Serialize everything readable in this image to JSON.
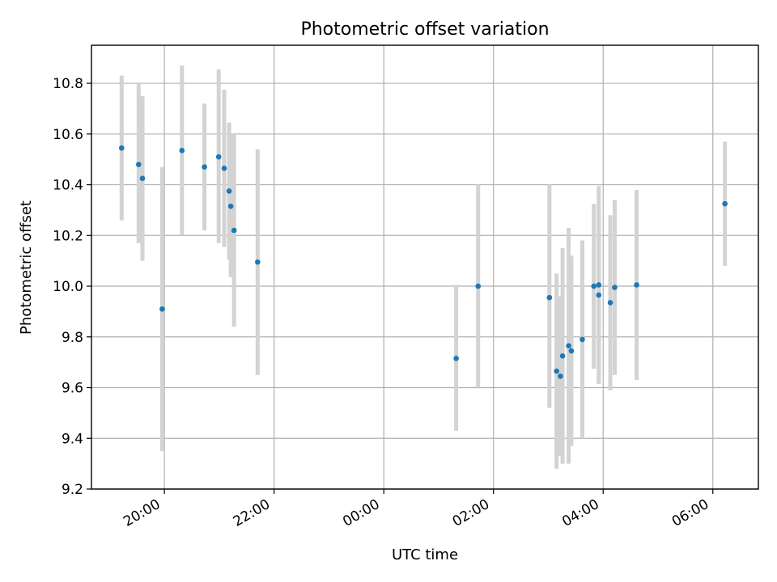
{
  "chart_data": {
    "type": "scatter",
    "title": "Photometric offset variation",
    "xlabel": "UTC time",
    "ylabel": "Photometric offset",
    "x_unit": "hours since 00:00 of first night (values above 24 are next day)",
    "xlim": [
      18.67,
      30.83
    ],
    "ylim": [
      9.2,
      10.95
    ],
    "x_ticks": [
      {
        "value": 20,
        "label": "20:00"
      },
      {
        "value": 22,
        "label": "22:00"
      },
      {
        "value": 24,
        "label": "00:00"
      },
      {
        "value": 26,
        "label": "02:00"
      },
      {
        "value": 28,
        "label": "04:00"
      },
      {
        "value": 30,
        "label": "06:00"
      }
    ],
    "y_ticks": [
      {
        "value": 9.2,
        "label": "9.2"
      },
      {
        "value": 9.4,
        "label": "9.4"
      },
      {
        "value": 9.6,
        "label": "9.6"
      },
      {
        "value": 9.8,
        "label": "9.8"
      },
      {
        "value": 10.0,
        "label": "10.0"
      },
      {
        "value": 10.2,
        "label": "10.2"
      },
      {
        "value": 10.4,
        "label": "10.4"
      },
      {
        "value": 10.6,
        "label": "10.6"
      },
      {
        "value": 10.8,
        "label": "10.8"
      }
    ],
    "grid": true,
    "point_color": "#1f77b4",
    "errorbar_color": "#d3d3d3",
    "points": [
      {
        "x": 19.22,
        "y": 10.545,
        "low": 10.26,
        "high": 10.83
      },
      {
        "x": 19.53,
        "y": 10.48,
        "low": 10.17,
        "high": 10.8
      },
      {
        "x": 19.6,
        "y": 10.425,
        "low": 10.1,
        "high": 10.75
      },
      {
        "x": 19.96,
        "y": 9.91,
        "low": 9.35,
        "high": 10.47
      },
      {
        "x": 20.32,
        "y": 10.535,
        "low": 10.2,
        "high": 10.87
      },
      {
        "x": 20.73,
        "y": 10.47,
        "low": 10.22,
        "high": 10.72
      },
      {
        "x": 20.99,
        "y": 10.51,
        "low": 10.17,
        "high": 10.855
      },
      {
        "x": 21.09,
        "y": 10.465,
        "low": 10.155,
        "high": 10.775
      },
      {
        "x": 21.18,
        "y": 10.375,
        "low": 10.105,
        "high": 10.645
      },
      {
        "x": 21.21,
        "y": 10.315,
        "low": 10.035,
        "high": 10.6
      },
      {
        "x": 21.27,
        "y": 10.22,
        "low": 9.84,
        "high": 10.6
      },
      {
        "x": 21.7,
        "y": 10.095,
        "low": 9.65,
        "high": 10.54
      },
      {
        "x": 25.32,
        "y": 9.715,
        "low": 9.43,
        "high": 10.005
      },
      {
        "x": 25.72,
        "y": 10.0,
        "low": 9.6,
        "high": 10.4
      },
      {
        "x": 27.02,
        "y": 9.955,
        "low": 9.52,
        "high": 10.4
      },
      {
        "x": 27.15,
        "y": 9.665,
        "low": 9.28,
        "high": 10.05
      },
      {
        "x": 27.22,
        "y": 9.645,
        "low": 9.33,
        "high": 9.96
      },
      {
        "x": 27.26,
        "y": 9.725,
        "low": 9.3,
        "high": 10.15
      },
      {
        "x": 27.37,
        "y": 9.765,
        "low": 9.3,
        "high": 10.23
      },
      {
        "x": 27.42,
        "y": 9.745,
        "low": 9.37,
        "high": 10.12
      },
      {
        "x": 27.62,
        "y": 9.79,
        "low": 9.4,
        "high": 10.18
      },
      {
        "x": 27.83,
        "y": 10.0,
        "low": 9.675,
        "high": 10.325
      },
      {
        "x": 27.92,
        "y": 10.005,
        "low": 9.615,
        "high": 10.395
      },
      {
        "x": 27.92,
        "y": 9.965,
        "low": 9.615,
        "high": 10.315
      },
      {
        "x": 28.13,
        "y": 9.935,
        "low": 9.59,
        "high": 10.28
      },
      {
        "x": 28.21,
        "y": 9.995,
        "low": 9.65,
        "high": 10.34
      },
      {
        "x": 28.61,
        "y": 10.005,
        "low": 9.63,
        "high": 10.38
      },
      {
        "x": 30.22,
        "y": 10.325,
        "low": 10.08,
        "high": 10.57
      }
    ]
  }
}
